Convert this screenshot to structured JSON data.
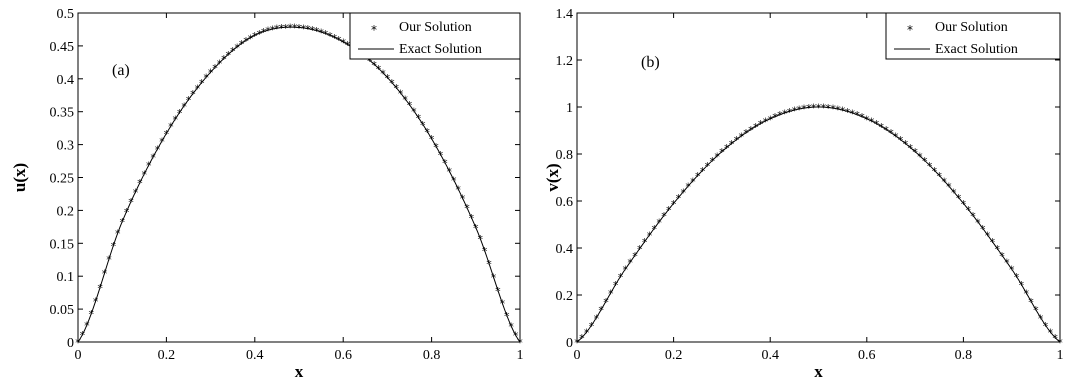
{
  "chart_data": [
    {
      "type": "line",
      "panel_label": "(a)",
      "xlabel": "x",
      "ylabel": "u(x)",
      "xlim": [
        0,
        1
      ],
      "ylim": [
        0,
        0.5
      ],
      "xticks": [
        "0",
        "0.2",
        "0.4",
        "0.6",
        "0.8",
        "1"
      ],
      "yticks": [
        "0",
        "0.05",
        "0.1",
        "0.15",
        "0.2",
        "0.25",
        "0.3",
        "0.35",
        "0.4",
        "0.45",
        "0.5"
      ],
      "grid": false,
      "legend_position": "top-right",
      "x": [
        0,
        0.1,
        0.2,
        0.3,
        0.4,
        0.5,
        0.6,
        0.7,
        0.8,
        0.9,
        1.0
      ],
      "series": [
        {
          "name": "Our Solution",
          "style": "markers-asterisk",
          "values": [
            0,
            0.183,
            0.317,
            0.41,
            0.466,
            0.478,
            0.456,
            0.402,
            0.309,
            0.174,
            0
          ]
        },
        {
          "name": "Exact Solution",
          "style": "solid-line",
          "values": [
            0,
            0.183,
            0.317,
            0.41,
            0.466,
            0.478,
            0.456,
            0.402,
            0.309,
            0.174,
            0
          ]
        }
      ]
    },
    {
      "type": "line",
      "panel_label": "(b)",
      "xlabel": "x",
      "ylabel": "v(x)",
      "xlim": [
        0,
        1
      ],
      "ylim": [
        0,
        1.4
      ],
      "xticks": [
        "0",
        "0.2",
        "0.4",
        "0.6",
        "0.8",
        "1"
      ],
      "yticks": [
        "0",
        "0.2",
        "0.4",
        "0.6",
        "0.8",
        "1",
        "1.2",
        "1.4"
      ],
      "grid": false,
      "legend_position": "top-right",
      "x": [
        0,
        0.1,
        0.2,
        0.3,
        0.4,
        0.5,
        0.6,
        0.7,
        0.8,
        0.9,
        1.0
      ],
      "series": [
        {
          "name": "Our Solution",
          "style": "markers-asterisk",
          "values": [
            0,
            0.31,
            0.59,
            0.81,
            0.95,
            1.0,
            0.95,
            0.81,
            0.59,
            0.31,
            0
          ]
        },
        {
          "name": "Exact Solution",
          "style": "solid-line",
          "values": [
            0,
            0.31,
            0.59,
            0.81,
            0.95,
            1.0,
            0.95,
            0.81,
            0.59,
            0.31,
            0
          ]
        }
      ]
    }
  ]
}
